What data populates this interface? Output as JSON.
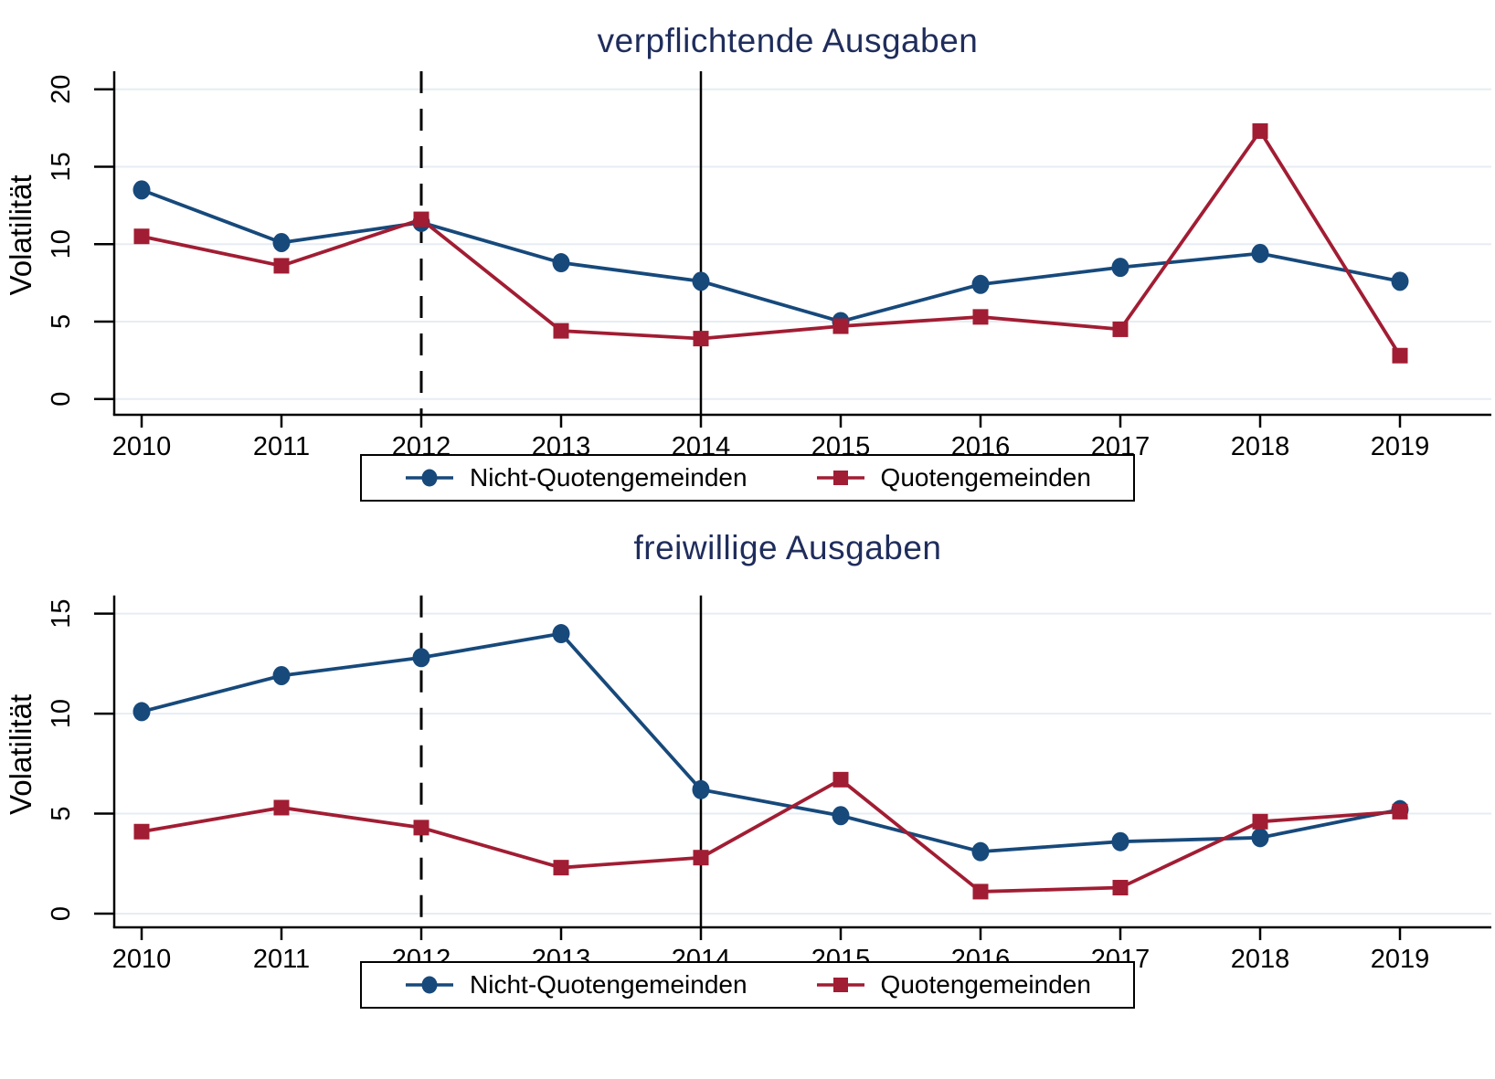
{
  "figure_title": "",
  "ylabel": "Volatilität",
  "colors": {
    "series_blue": "#17497b",
    "series_red": "#a11d33",
    "title_navy": "#1f2d5c",
    "gridline": "#e6edf3",
    "axis": "#000000",
    "background": "#ffffff"
  },
  "chart_data": [
    {
      "type": "line",
      "title": "verpflichtende Ausgaben",
      "xlabel": "",
      "ylabel": "Volatilität",
      "categories": [
        2010,
        2011,
        2012,
        2013,
        2014,
        2015,
        2016,
        2017,
        2018,
        2019
      ],
      "yticks": [
        0,
        5,
        10,
        15,
        20
      ],
      "ylim": [
        0,
        21
      ],
      "grid": true,
      "legend_position": "bottom",
      "ref_lines": [
        {
          "x": 2012,
          "style": "dashed",
          "color": "#000000"
        },
        {
          "x": 2014,
          "style": "solid",
          "color": "#000000"
        }
      ],
      "series": [
        {
          "name": "Nicht-Quotengemeinden",
          "marker": "circle",
          "color": "#17497b",
          "values": [
            13.5,
            10.1,
            11.4,
            8.8,
            7.6,
            5.0,
            7.4,
            8.5,
            9.4,
            7.6
          ]
        },
        {
          "name": "Quotengemeinden",
          "marker": "square",
          "color": "#a11d33",
          "values": [
            10.5,
            8.6,
            11.6,
            4.4,
            3.9,
            4.7,
            5.3,
            4.5,
            17.3,
            2.8
          ]
        }
      ]
    },
    {
      "type": "line",
      "title": "freiwillige Ausgaben",
      "xlabel": "",
      "ylabel": "Volatilität",
      "categories": [
        2010,
        2011,
        2012,
        2013,
        2014,
        2015,
        2016,
        2017,
        2018,
        2019
      ],
      "yticks": [
        0,
        5,
        10,
        15
      ],
      "ylim": [
        0,
        16
      ],
      "grid": true,
      "legend_position": "bottom",
      "ref_lines": [
        {
          "x": 2012,
          "style": "dashed",
          "color": "#000000"
        },
        {
          "x": 2014,
          "style": "solid",
          "color": "#000000"
        }
      ],
      "series": [
        {
          "name": "Nicht-Quotengemeinden",
          "marker": "circle",
          "color": "#17497b",
          "values": [
            10.1,
            11.9,
            12.8,
            14.0,
            6.2,
            4.9,
            3.1,
            3.6,
            3.8,
            5.2
          ]
        },
        {
          "name": "Quotengemeinden",
          "marker": "square",
          "color": "#a11d33",
          "values": [
            4.1,
            5.3,
            4.3,
            2.3,
            2.8,
            6.7,
            1.1,
            1.3,
            4.6,
            5.1
          ]
        }
      ]
    }
  ]
}
